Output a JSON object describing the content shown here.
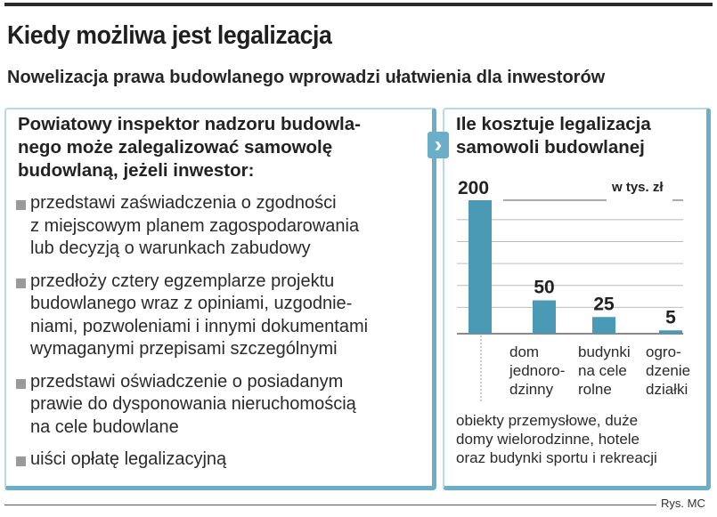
{
  "title": "Kiedy możliwa jest legalizacja",
  "subtitle": "Nowelizacja prawa budowlanego wprowadzi ułatwienia dla inwestorów",
  "left_panel": {
    "heading_lines": [
      "Powiatowy inspektor nadzoru budowla-",
      "nego może zalegalizować samowolę",
      "budowlaną, jeżeli inwestor:"
    ],
    "bullets": [
      {
        "lines": [
          "przedstawi zaświadczenia o zgodności",
          "z miejscowym planem zagospodarowania",
          "lub decyzją o warunkach zabudowy"
        ]
      },
      {
        "lines": [
          "przedłoży cztery egzemplarze projektu",
          "budowlanego wraz z opiniami, uzgodnie-",
          "niami, pozwoleniami i innymi dokumentami",
          "wymaganymi przepisami szczególnymi"
        ]
      },
      {
        "lines": [
          "przedstawi oświadczenie o posiadanym",
          "prawie do dysponowania nieruchomością",
          "na cele budowlane"
        ]
      },
      {
        "lines": [
          "uiści opłatę legalizacyjną"
        ]
      }
    ]
  },
  "right_panel": {
    "heading_lines": [
      "Ile kosztuje legalizacja",
      "samowoli budowlanej"
    ],
    "arrow_icon": "›",
    "note_lines": [
      "obiekty przemysłowe, duże",
      "domy wielorodzinne, hotele",
      "oraz budynki sportu i rekreacji"
    ]
  },
  "chart_data": {
    "type": "bar",
    "title": "Ile kosztuje legalizacja samowoli budowlanej",
    "unit_label": "w tys. zł",
    "categories": [
      "obiekty przemysłowe, duże domy wielorodzinne, hotele oraz budynki sportu i rekreacji",
      "dom\njednoro-\ndzinny",
      "budynki\nna cele\nrolne",
      "ogro-\ndzenie\ndziałki"
    ],
    "values": [
      200,
      50,
      25,
      5
    ],
    "value_labels": [
      "200",
      "50",
      "25",
      "5"
    ],
    "ylim": [
      0,
      200
    ],
    "grid": true,
    "bar_color": "#4a9ab5"
  },
  "credit": "Rys. MC"
}
